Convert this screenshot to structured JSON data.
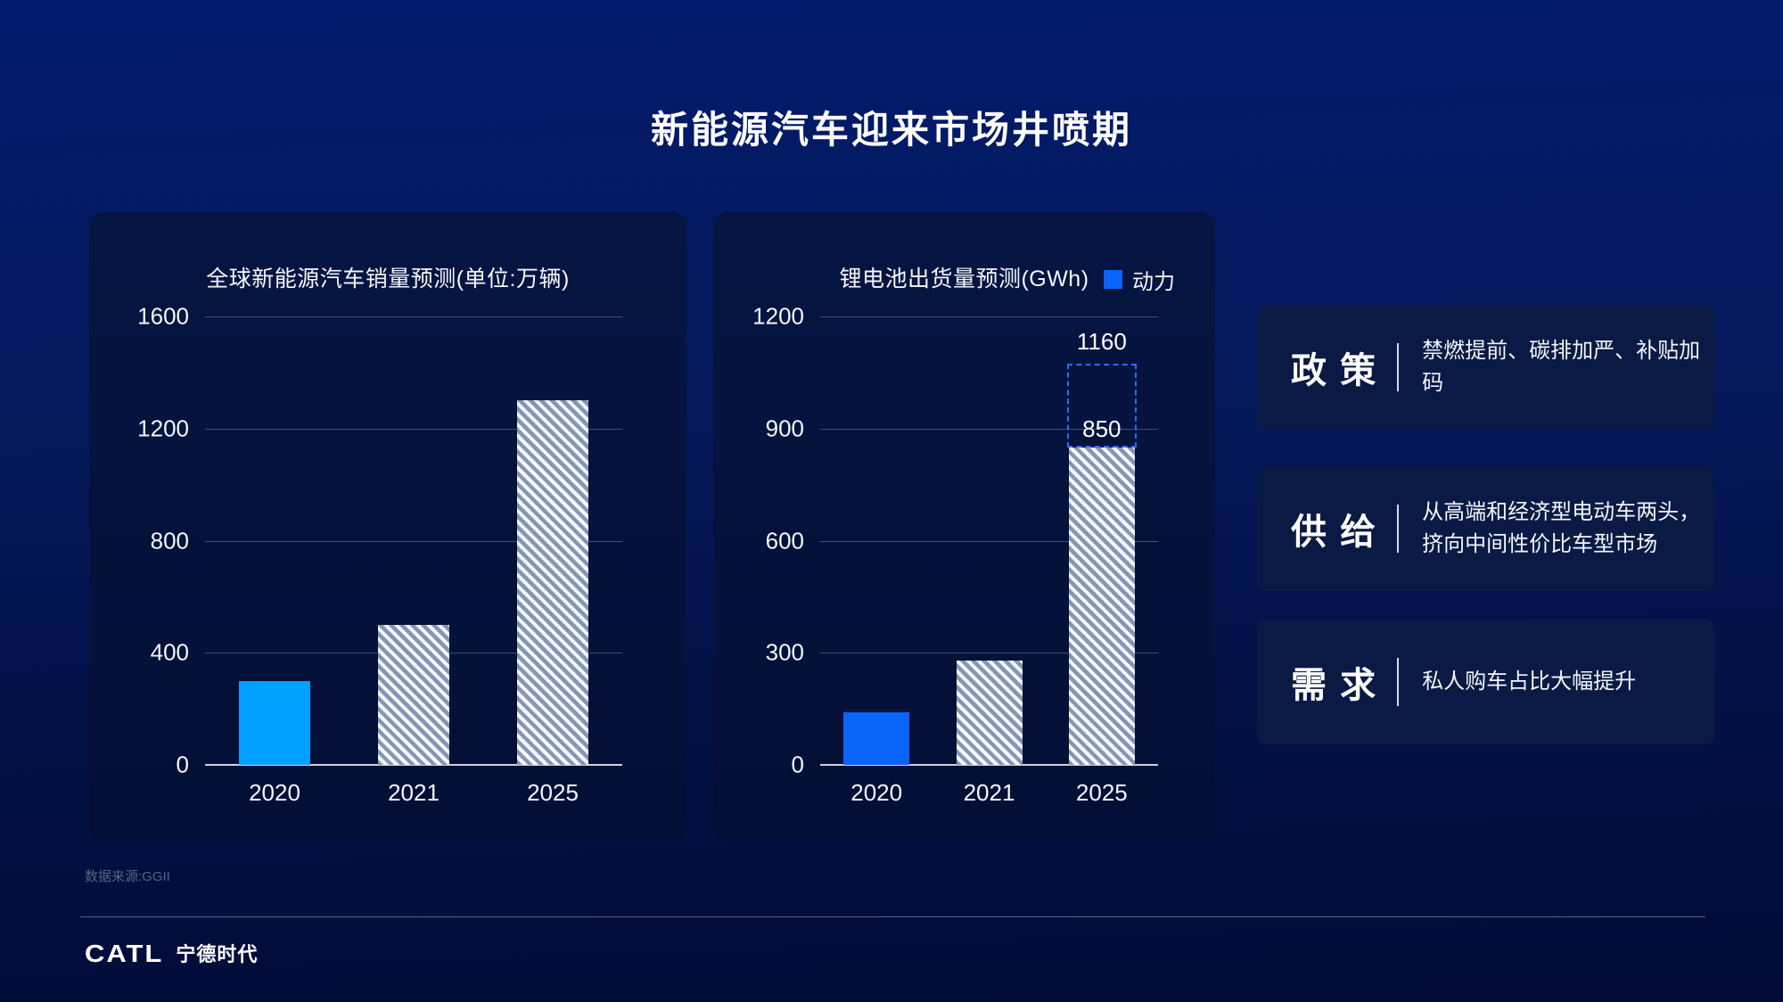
{
  "page": {
    "title": "新能源汽车迎来市场井喷期"
  },
  "chart_data": [
    {
      "type": "bar",
      "title": "全球新能源汽车销量预测(单位:万辆)",
      "categories": [
        "2020",
        "2021",
        "2025"
      ],
      "values": [
        300,
        500,
        1300
      ],
      "ylim": [
        0,
        1600
      ],
      "yticks": [
        0,
        400,
        800,
        1200,
        1600
      ],
      "bar_styles": [
        "solid",
        "hatch",
        "hatch"
      ],
      "bar_color": "#00A1FF",
      "hatch_base": "#8496B4",
      "hatch_stripe": "#F4F6FA",
      "grid": true,
      "xlabel": "",
      "ylabel": ""
    },
    {
      "type": "bar",
      "title": "锂电池出货量预测(GWh)",
      "legend": [
        {
          "label": "动力",
          "color": "#0A64F8",
          "position": "top-right"
        }
      ],
      "categories": [
        "2020",
        "2021",
        "2025"
      ],
      "values": [
        140,
        280,
        850
      ],
      "ylim": [
        0,
        1200
      ],
      "yticks": [
        0,
        300,
        600,
        900,
        1200
      ],
      "bar_styles": [
        "solid",
        "hatch",
        "hatch"
      ],
      "bar_color": "#0A64F8",
      "hatch_base": "#8496B4",
      "hatch_stripe": "#F4F6FA",
      "annotation": {
        "category": "2025",
        "base_value": 850,
        "base_label": "850",
        "projected_value": 1160,
        "projected_label": "1160",
        "style": "dashed-box",
        "outline_color": "#2C6BF7"
      },
      "grid": true,
      "xlabel": "",
      "ylabel": ""
    }
  ],
  "factors": [
    {
      "label": "政 策",
      "desc": "禁燃提前、碳排加严、补贴加码"
    },
    {
      "label": "供 给",
      "desc": "从高端和经济型电动车两头，\n挤向中间性价比车型市场"
    },
    {
      "label": "需 求",
      "desc": "私人购车占比大幅提升"
    }
  ],
  "footer": {
    "source": "数据来源:GGII",
    "logo_catl": "CATL",
    "logo_cn": "宁德时代"
  }
}
